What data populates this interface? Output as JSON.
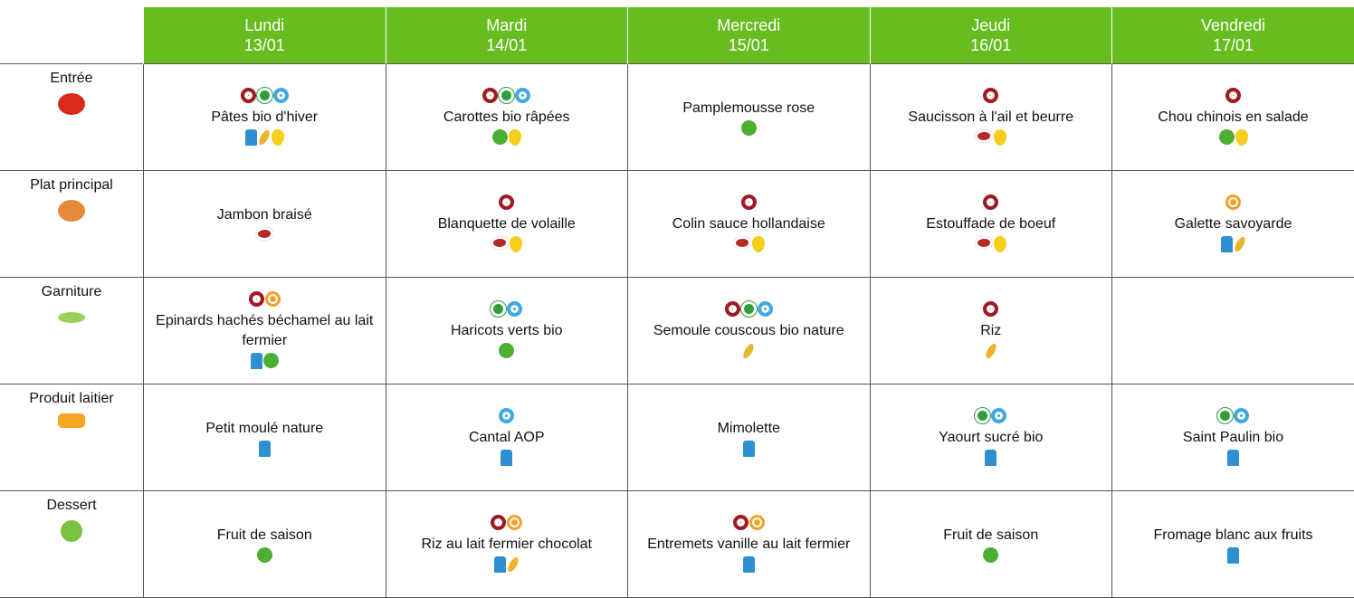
{
  "days": [
    {
      "name": "Lundi",
      "date": "13/01"
    },
    {
      "name": "Mardi",
      "date": "14/01"
    },
    {
      "name": "Mercredi",
      "date": "15/01"
    },
    {
      "name": "Jeudi",
      "date": "16/01"
    },
    {
      "name": "Vendredi",
      "date": "17/01"
    }
  ],
  "rows": [
    {
      "label": "Entrée",
      "cells": [
        "Pâtes bio d'hiver",
        "Carottes bio râpées",
        "Pamplemousse rose",
        "Saucisson à l'ail et beurre",
        "Chou chinois en salade"
      ]
    },
    {
      "label": "Plat principal",
      "cells": [
        "Jambon braisé",
        "Blanquette de volaille",
        "Colin sauce hollandaise",
        "Estouffade de boeuf",
        "Galette savoyarde"
      ]
    },
    {
      "label": "Garniture",
      "cells": [
        "Epinards hachés béchamel au lait fermier",
        "Haricots verts bio",
        "Semoule couscous bio nature",
        "Riz",
        null
      ]
    },
    {
      "label": "Produit laitier",
      "cells": [
        "Petit moulé nature",
        "Cantal AOP",
        "Mimolette",
        "Yaourt sucré bio",
        "Saint Paulin bio"
      ]
    },
    {
      "label": "Dessert",
      "cells": [
        "Fruit de saison",
        "Riz au lait fermier chocolat",
        "Entremets vanille au lait fermier",
        "Fruit de saison",
        "Fromage blanc aux fruits"
      ]
    }
  ]
}
